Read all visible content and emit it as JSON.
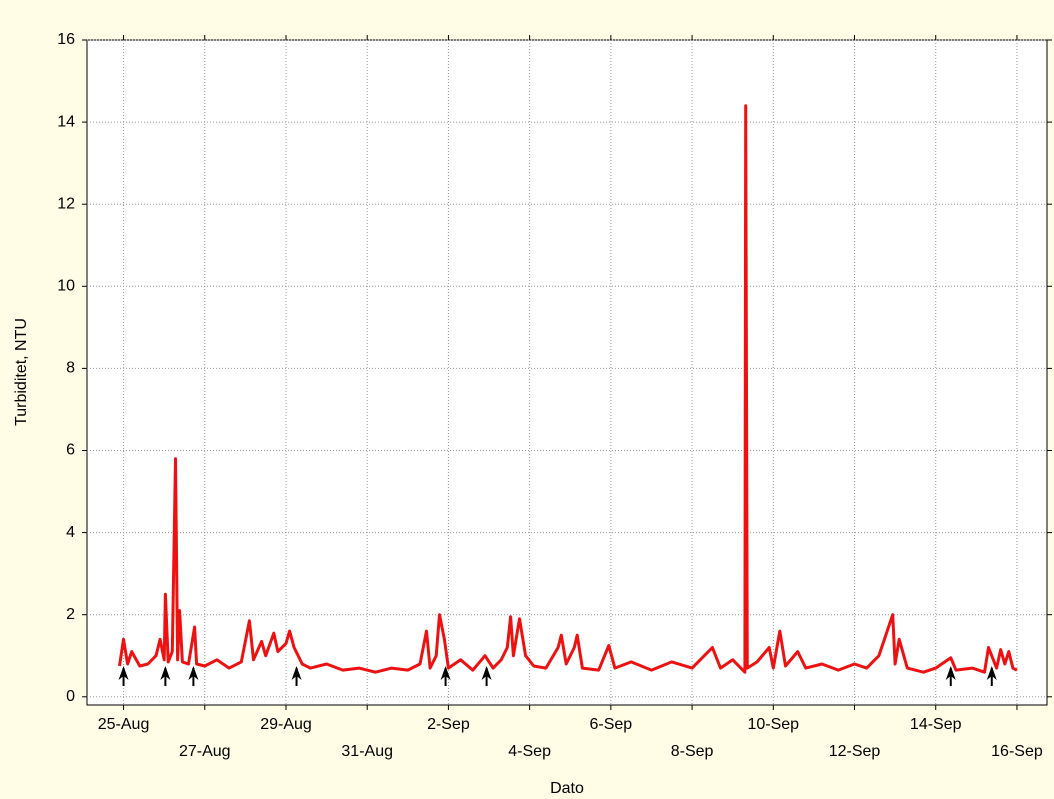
{
  "chart_data": {
    "type": "line",
    "x_label": "Dato",
    "y_label": "Turbiditet, NTU",
    "x": [
      24.9,
      25.0,
      25.1,
      25.2,
      25.4,
      25.6,
      25.8,
      25.9,
      26.0,
      26.03,
      26.1,
      26.2,
      26.28,
      26.33,
      26.38,
      26.45,
      26.6,
      26.75,
      26.8,
      27.0,
      27.3,
      27.6,
      27.9,
      28.1,
      28.2,
      28.4,
      28.5,
      28.7,
      28.8,
      29.0,
      29.09,
      29.2,
      29.4,
      29.6,
      30.0,
      30.4,
      30.8,
      31.2,
      31.6,
      32.0,
      32.3,
      32.46,
      32.55,
      32.7,
      32.78,
      32.9,
      33.0,
      33.3,
      33.6,
      33.9,
      34.1,
      34.3,
      34.45,
      34.53,
      34.6,
      34.75,
      34.9,
      35.1,
      35.4,
      35.7,
      35.78,
      35.9,
      36.1,
      36.17,
      36.3,
      36.7,
      36.95,
      37.1,
      37.5,
      38.0,
      38.5,
      39.0,
      39.5,
      39.7,
      40.0,
      40.3,
      40.32,
      40.36,
      40.6,
      40.9,
      41.0,
      41.16,
      41.3,
      41.6,
      41.8,
      42.2,
      42.6,
      43.0,
      43.3,
      43.6,
      43.94,
      44.0,
      44.1,
      44.3,
      44.7,
      45.0,
      45.37,
      45.5,
      45.9,
      46.2,
      46.3,
      46.5,
      46.6,
      46.7,
      46.8,
      46.9,
      47.0
    ],
    "series": [
      {
        "color": "#ee1111",
        "values": [
          0.75,
          1.4,
          0.8,
          1.1,
          0.75,
          0.8,
          1.0,
          1.4,
          0.9,
          2.5,
          0.85,
          1.1,
          5.8,
          0.9,
          2.1,
          0.85,
          0.8,
          1.7,
          0.8,
          0.75,
          0.9,
          0.7,
          0.85,
          1.85,
          0.9,
          1.35,
          1.0,
          1.55,
          1.1,
          1.3,
          1.6,
          1.2,
          0.8,
          0.7,
          0.8,
          0.65,
          0.7,
          0.6,
          0.7,
          0.65,
          0.8,
          1.6,
          0.7,
          1.0,
          2.0,
          1.4,
          0.7,
          0.9,
          0.65,
          1.0,
          0.7,
          0.9,
          1.2,
          1.95,
          1.0,
          1.9,
          1.0,
          0.75,
          0.7,
          1.2,
          1.5,
          0.8,
          1.2,
          1.5,
          0.7,
          0.65,
          1.25,
          0.7,
          0.85,
          0.65,
          0.85,
          0.7,
          1.2,
          0.7,
          0.9,
          0.6,
          14.4,
          0.7,
          0.85,
          1.2,
          0.7,
          1.6,
          0.75,
          1.1,
          0.7,
          0.8,
          0.65,
          0.8,
          0.7,
          1.0,
          2.0,
          0.8,
          1.4,
          0.7,
          0.6,
          0.7,
          0.95,
          0.65,
          0.7,
          0.6,
          1.2,
          0.7,
          1.15,
          0.8,
          1.1,
          0.7,
          0.65
        ]
      }
    ],
    "event_markers": [
      25.0,
      26.03,
      26.72,
      29.26,
      32.93,
      33.94,
      45.37,
      46.38
    ],
    "xlim": [
      24.1,
      47.74
    ],
    "xticks": [
      {
        "value": 25,
        "label": "25-Aug"
      },
      {
        "value": 27,
        "label": "27-Aug"
      },
      {
        "value": 29,
        "label": "29-Aug"
      },
      {
        "value": 31,
        "label": "31-Aug"
      },
      {
        "value": 33,
        "label": "2-Sep"
      },
      {
        "value": 35,
        "label": "4-Sep"
      },
      {
        "value": 37,
        "label": "6-Sep"
      },
      {
        "value": 39,
        "label": "8-Sep"
      },
      {
        "value": 41,
        "label": "10-Sep"
      },
      {
        "value": 43,
        "label": "12-Sep"
      },
      {
        "value": 45,
        "label": "14-Sep"
      },
      {
        "value": 47,
        "label": "16-Sep"
      }
    ],
    "ylim": [
      -0.2,
      16
    ],
    "yticks": [
      0,
      2,
      4,
      6,
      8,
      10,
      12,
      14,
      16
    ],
    "grid": true
  }
}
